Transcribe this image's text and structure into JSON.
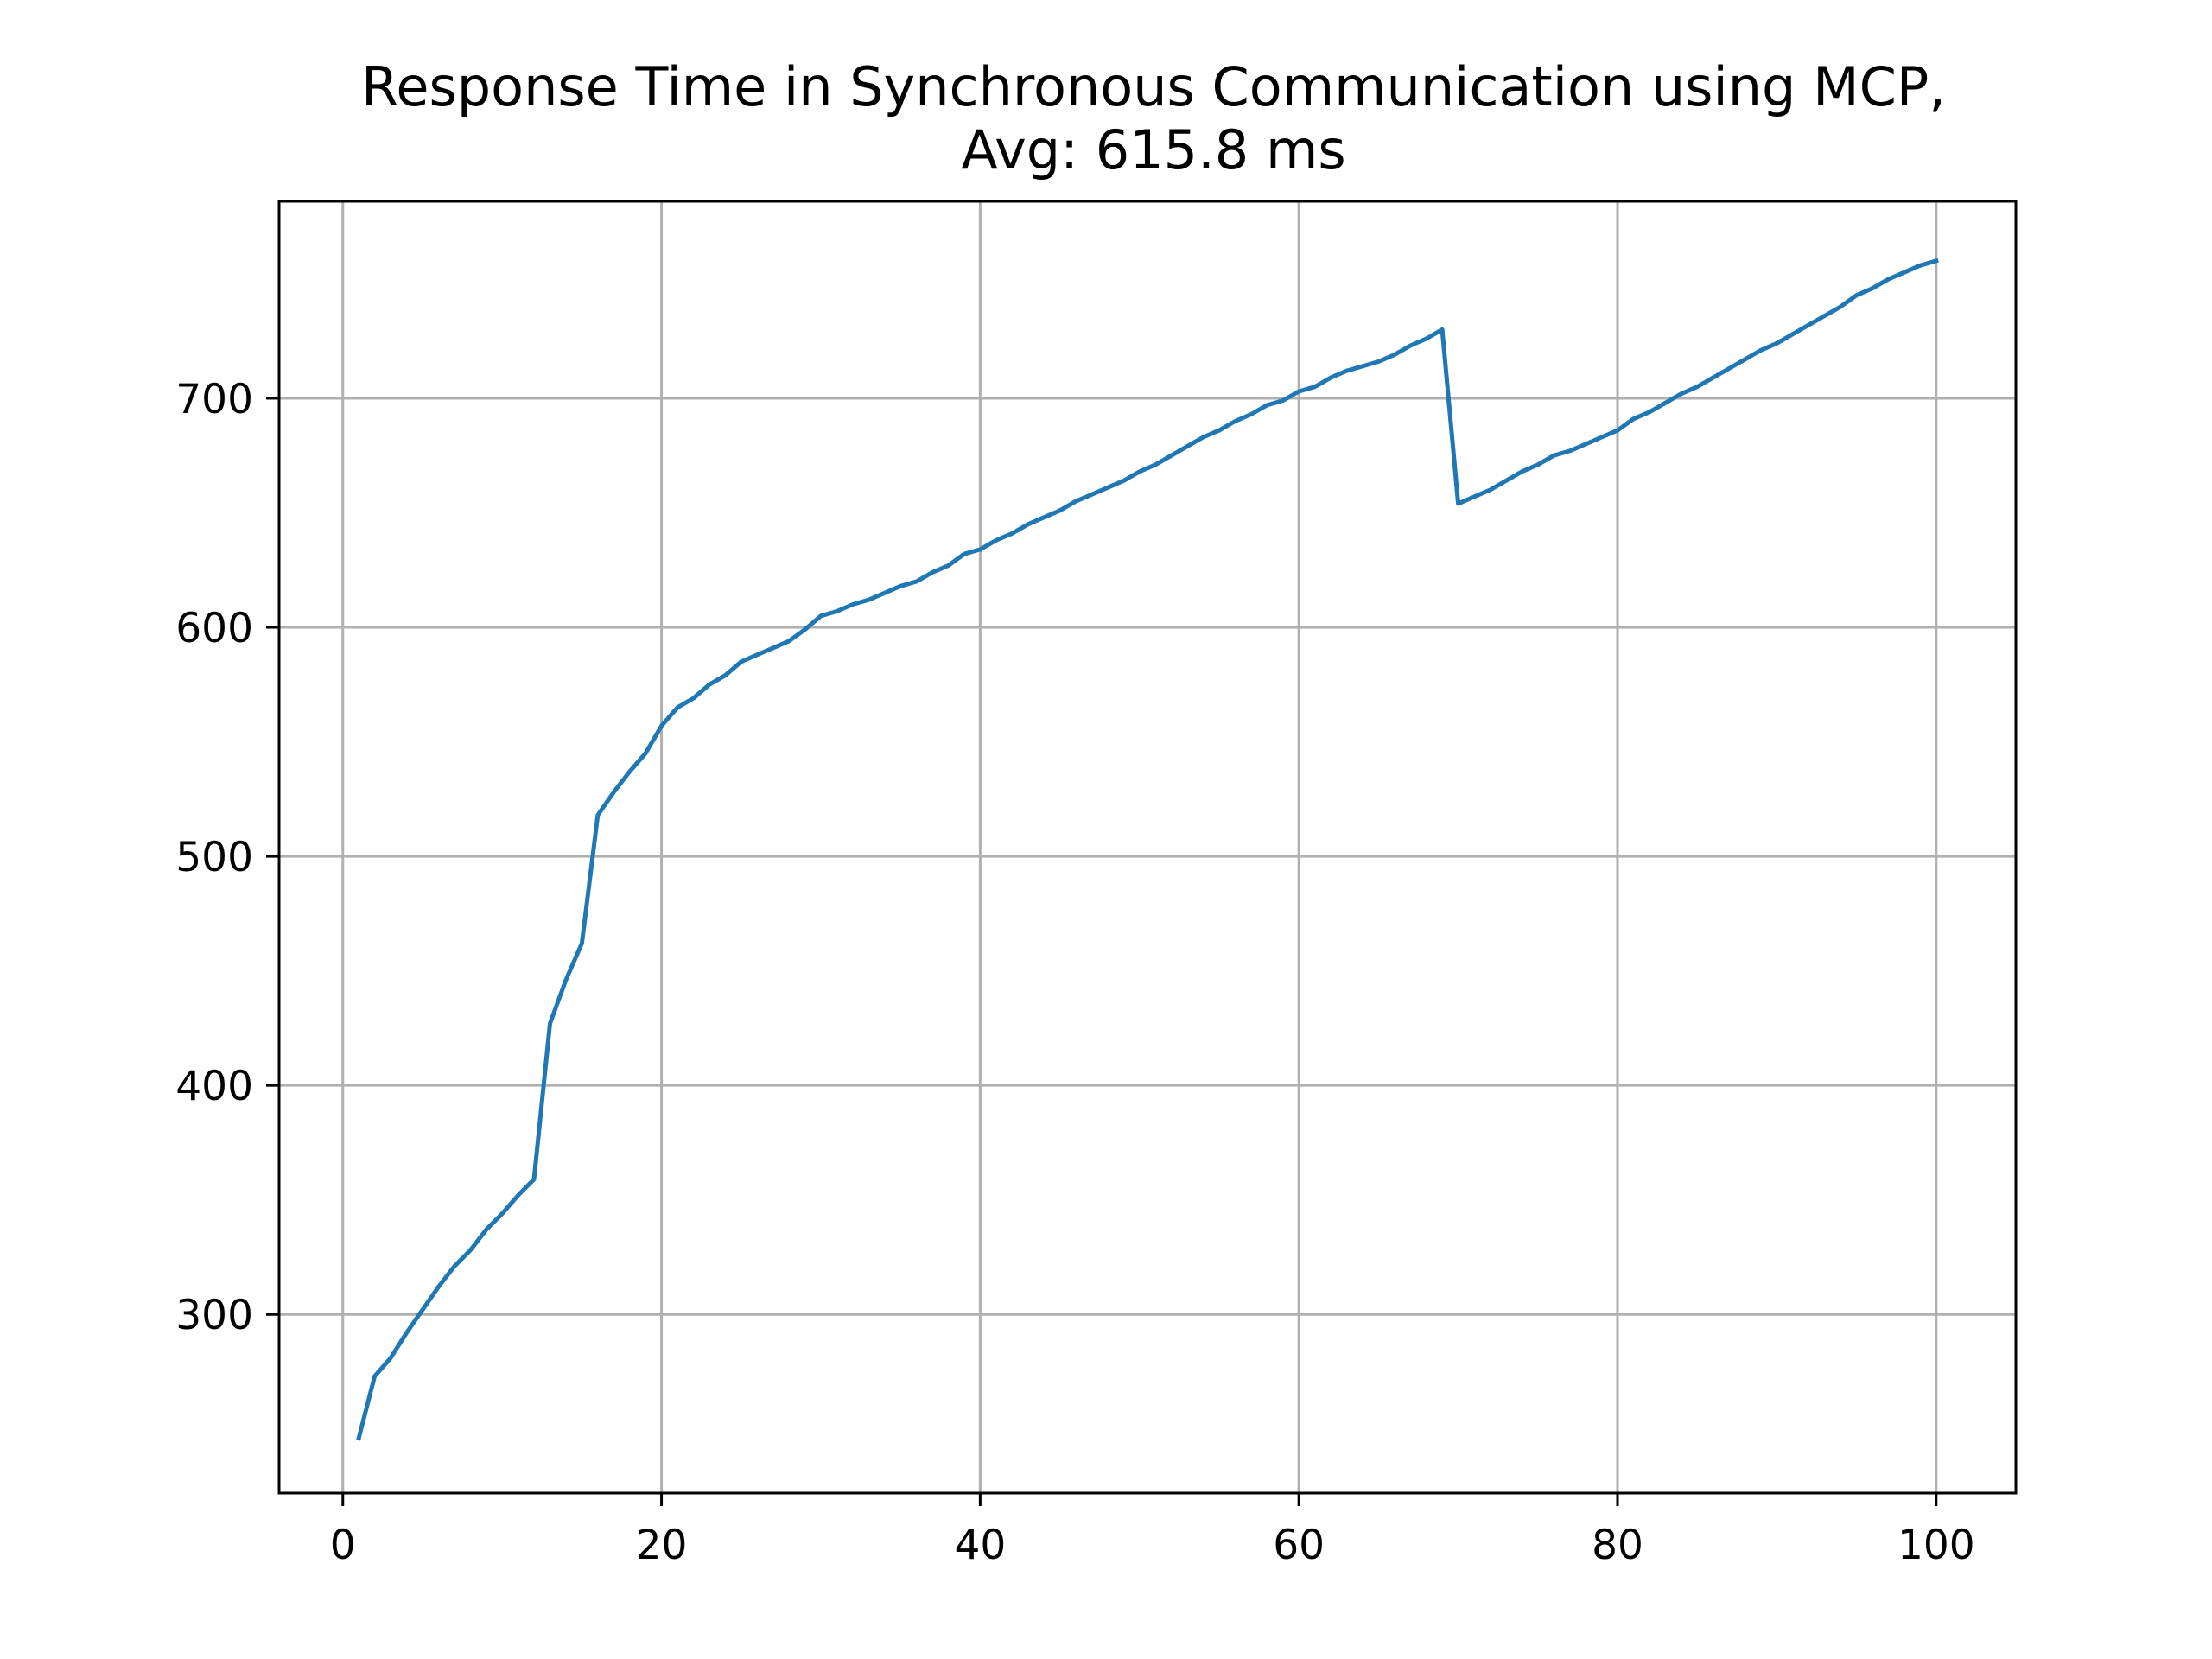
{
  "chart_data": {
    "type": "line",
    "title": "Response Time in Synchronous Communication using MCP,",
    "subtitle": "Avg: 615.8 ms",
    "xlabel": "",
    "ylabel": "",
    "xlim": [
      -4,
      105
    ],
    "ylim": [
      222,
      786
    ],
    "xticks": [
      0,
      20,
      40,
      60,
      80,
      100
    ],
    "yticks": [
      300,
      400,
      500,
      600,
      700
    ],
    "grid": true,
    "series": [
      {
        "color": "#1f77b4",
        "x": [
          1,
          2,
          3,
          4,
          5,
          6,
          7,
          8,
          9,
          10,
          11,
          12,
          13,
          14,
          15,
          16,
          17,
          18,
          19,
          20,
          21,
          22,
          23,
          24,
          25,
          26,
          27,
          28,
          29,
          30,
          31,
          32,
          33,
          34,
          35,
          36,
          37,
          38,
          39,
          40,
          41,
          42,
          43,
          44,
          45,
          46,
          47,
          48,
          49,
          50,
          51,
          52,
          53,
          54,
          55,
          56,
          57,
          58,
          59,
          60,
          61,
          62,
          63,
          64,
          65,
          66,
          67,
          68,
          69,
          70,
          71,
          72,
          73,
          74,
          75,
          76,
          77,
          78,
          79,
          80,
          81,
          82,
          83,
          84,
          85,
          86,
          87,
          88,
          89,
          90,
          91,
          92,
          93,
          94,
          95,
          96,
          97,
          98,
          99,
          100
        ],
        "values": [
          246,
          273,
          281,
          292,
          302,
          312,
          321,
          328,
          337,
          344,
          352,
          359,
          427,
          446,
          462,
          518,
          528,
          537,
          545,
          557,
          565,
          569,
          575,
          579,
          585,
          588,
          591,
          594,
          599,
          605,
          607,
          610,
          612,
          615,
          618,
          620,
          624,
          627,
          632,
          634,
          638,
          641,
          645,
          648,
          651,
          655,
          658,
          661,
          664,
          668,
          671,
          675,
          679,
          683,
          686,
          690,
          693,
          697,
          699,
          703,
          705,
          709,
          712,
          714,
          716,
          719,
          723,
          726,
          730,
          654,
          657,
          660,
          664,
          668,
          671,
          675,
          677,
          680,
          683,
          686,
          691,
          694,
          698,
          702,
          705,
          709,
          713,
          717,
          721,
          724,
          728,
          732,
          736,
          740,
          745,
          748,
          752,
          755,
          758,
          760
        ]
      }
    ]
  }
}
